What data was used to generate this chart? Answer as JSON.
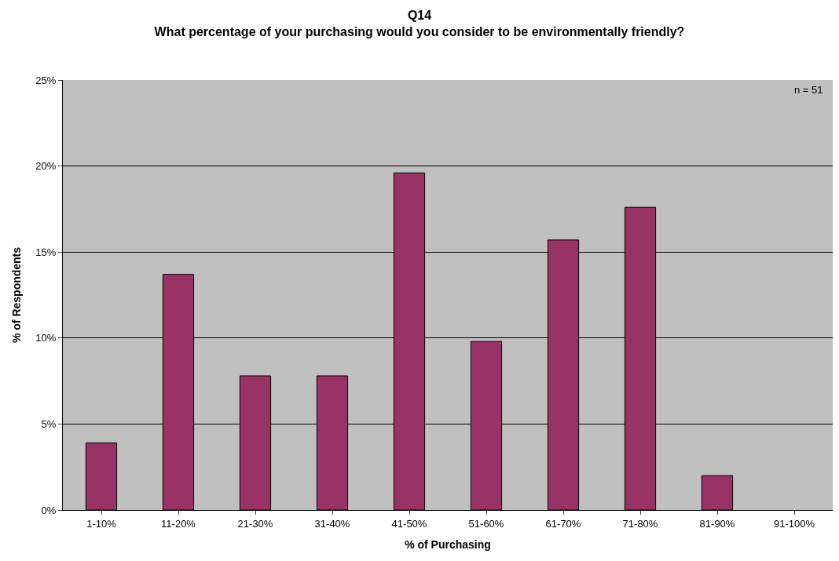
{
  "chart_data": {
    "type": "bar",
    "title": "Q14",
    "subtitle": "What percentage of your purchasing would you consider to be environmentally friendly?",
    "xlabel": "% of Purchasing",
    "ylabel": "% of Respondents",
    "categories": [
      "1-10%",
      "11-20%",
      "21-30%",
      "31-40%",
      "41-50%",
      "51-60%",
      "61-70%",
      "71-80%",
      "81-90%",
      "91-100%"
    ],
    "values": [
      3.9,
      13.7,
      7.8,
      7.8,
      19.6,
      9.8,
      15.7,
      17.6,
      2.0,
      0
    ],
    "color": "#993366",
    "ylim": [
      0,
      25
    ],
    "yticks": [
      {
        "value": 0,
        "label": "0%"
      },
      {
        "value": 5,
        "label": "5%"
      },
      {
        "value": 10,
        "label": "10%"
      },
      {
        "value": 15,
        "label": "15%"
      },
      {
        "value": 20,
        "label": "20%"
      },
      {
        "value": 25,
        "label": "25%"
      }
    ],
    "grid": "y",
    "annotations": [
      "n = 51"
    ]
  }
}
